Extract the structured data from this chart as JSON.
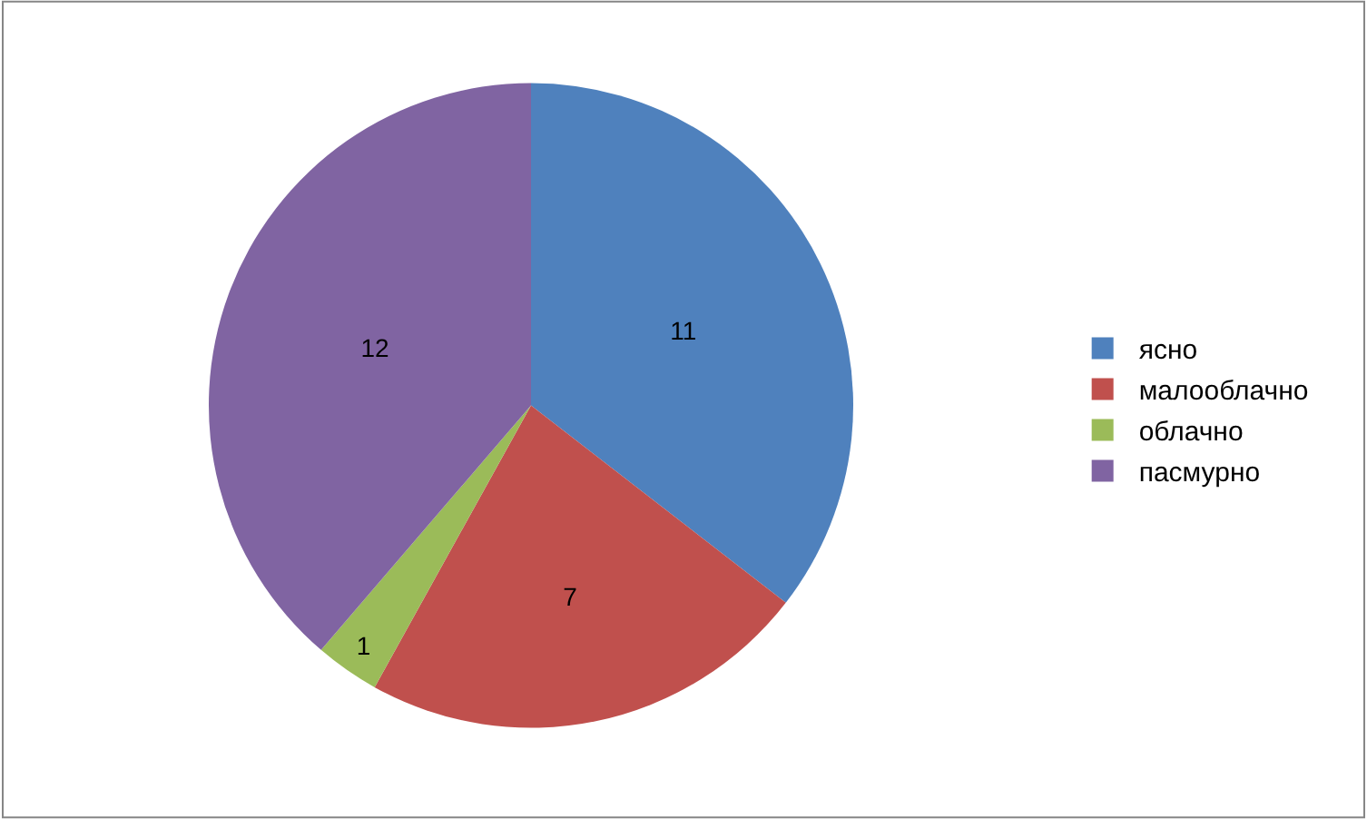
{
  "chart_data": {
    "type": "pie",
    "categories": [
      "ясно",
      "малооблачно",
      "облачно",
      "пасмурно"
    ],
    "values": [
      11,
      7,
      1,
      12
    ],
    "colors": [
      "#4f81bd",
      "#c0504d",
      "#9bbb59",
      "#8064a2"
    ],
    "data_labels": true,
    "legend": "right"
  }
}
